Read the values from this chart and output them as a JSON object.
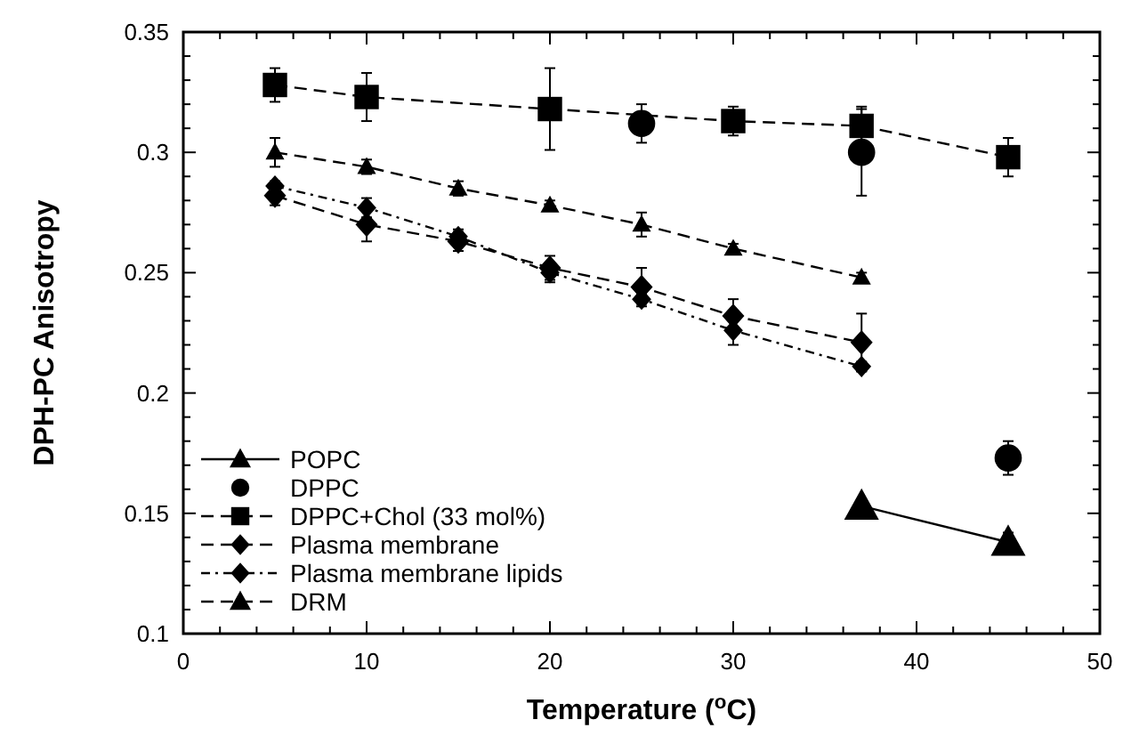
{
  "chart_data": {
    "type": "line",
    "xlabel": "Temperature ($^{o}$C)",
    "ylabel": "DPH-PC Anisotropy",
    "xlim": [
      0,
      50
    ],
    "xticks": [
      0,
      10,
      20,
      30,
      40,
      50
    ],
    "ylim": [
      0.1,
      0.35
    ],
    "yticks": [
      0.1,
      0.15,
      0.2,
      0.25,
      0.3,
      0.35
    ],
    "grid": false,
    "legend": "bottom left",
    "series": [
      {
        "name": "POPC",
        "color": "#000000",
        "marker": "triangle",
        "line_style": "solid",
        "x": [
          37,
          45
        ],
        "values": [
          0.153,
          0.138
        ],
        "errors": [
          0.002,
          0.004
        ]
      },
      {
        "name": "DPPC",
        "type": "scatter",
        "color": "#000000",
        "marker": "circle",
        "line_style": "none",
        "x": [
          25,
          37,
          45
        ],
        "values": [
          0.312,
          0.3,
          0.173
        ],
        "errors": [
          0.008,
          0.018,
          0.007
        ]
      },
      {
        "name": "DPPC+Chol (33 mol%)",
        "color": "#000000",
        "marker": "square",
        "line_style": "dashed",
        "x": [
          5,
          10,
          20,
          30,
          37,
          45
        ],
        "values": [
          0.328,
          0.323,
          0.318,
          0.313,
          0.311,
          0.298
        ],
        "errors": [
          0.007,
          0.01,
          0.017,
          0.006,
          0.008,
          0.008
        ]
      },
      {
        "name": "Plasma membrane",
        "color": "#000000",
        "marker": "diamond",
        "line_style": "dashed",
        "x": [
          5,
          10,
          15,
          20,
          25,
          30,
          37
        ],
        "values": [
          0.282,
          0.27,
          0.263,
          0.252,
          0.244,
          0.232,
          0.221
        ],
        "errors": [
          0.004,
          0.007,
          0.004,
          0.005,
          0.008,
          0.007,
          0.012
        ]
      },
      {
        "name": "Plasma membrane lipids",
        "color": "#000000",
        "marker": "diamond",
        "line_style": "dotted",
        "x": [
          5,
          10,
          15,
          20,
          25,
          30,
          37
        ],
        "values": [
          0.286,
          0.277,
          0.265,
          0.25,
          0.239,
          0.226,
          0.211
        ],
        "errors": [
          0.002,
          0.004,
          0.003,
          0.004,
          0.002,
          0.006,
          0.002
        ]
      },
      {
        "name": "DRM",
        "color": "#000000",
        "marker": "triangle",
        "line_style": "dashed",
        "x": [
          5,
          10,
          15,
          20,
          25,
          30,
          37
        ],
        "values": [
          0.3,
          0.294,
          0.285,
          0.278,
          0.27,
          0.26,
          0.248
        ],
        "errors": [
          0.006,
          0.003,
          0.003,
          0.002,
          0.005,
          0.002,
          0.002
        ]
      }
    ]
  }
}
